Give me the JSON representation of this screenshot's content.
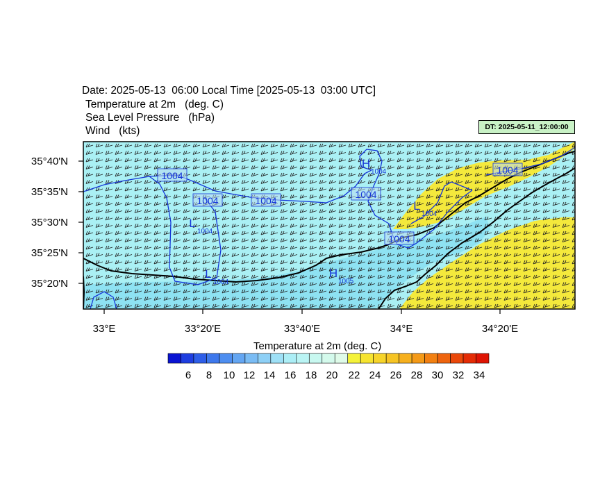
{
  "header": {
    "title": "Date: 2025-05-13  06:00 Local Time [2025-05-13  03:00 UTC]",
    "fields": [
      "Temperature at 2m   (deg. C)",
      "Sea Level Pressure   (hPa)",
      "Wind   (kts)"
    ],
    "dt_badge": "DT: 2025-05-11_12:00:00"
  },
  "map": {
    "lat_labels": [
      "35°40'N",
      "35°35'N",
      "35°30'N",
      "35°25'N",
      "35°20'N"
    ],
    "lon_labels": [
      "33°E",
      "33°20'E",
      "33°40'E",
      "34°E",
      "34°20'E"
    ],
    "pressure_labels": [
      "1004",
      "1004",
      "1004",
      "1004",
      "1004",
      "1004"
    ],
    "centers": [
      {
        "letter": "H",
        "value": "1004"
      },
      {
        "letter": "L",
        "value": "1004"
      },
      {
        "letter": "L",
        "value": "1004"
      },
      {
        "letter": "L",
        "value": "1004"
      },
      {
        "letter": "H",
        "value": "1005"
      }
    ],
    "colors": {
      "cool": "#aaf0f4",
      "cooler": "#8ee2f2",
      "warm": "#f4e93c",
      "isobar": "#1535d8",
      "coast": "#000000"
    }
  },
  "colorbar": {
    "title": "Temperature at 2m  (deg. C)",
    "tick_labels": [
      "6",
      "8",
      "10",
      "12",
      "14",
      "16",
      "18",
      "20",
      "22",
      "24",
      "26",
      "28",
      "30",
      "32",
      "34"
    ],
    "colors": [
      "#0a14d2",
      "#1e3ee0",
      "#2e5ee8",
      "#3e78ec",
      "#4e8ef0",
      "#64a6f2",
      "#7abcf4",
      "#8ed0f6",
      "#9ee0f6",
      "#aceef6",
      "#baf4f4",
      "#c8f8f0",
      "#d4faec",
      "#dffbe9",
      "#f4f23a",
      "#f6e430",
      "#f6d42a",
      "#f6c424",
      "#f6b01e",
      "#f49a18",
      "#f28012",
      "#ee640e",
      "#ea480a",
      "#e42c06",
      "#de1404"
    ]
  }
}
